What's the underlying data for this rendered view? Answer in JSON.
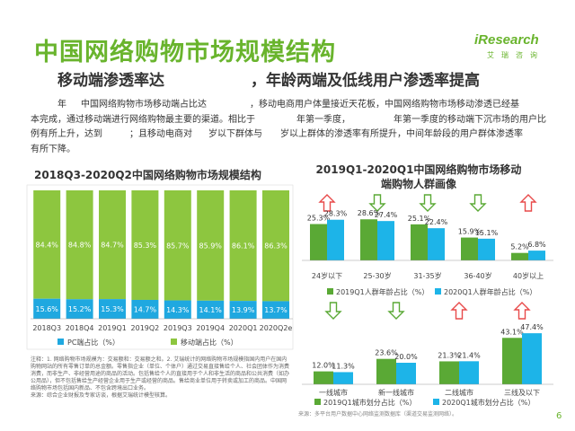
{
  "header": {
    "title": "中国网络购物市场规模结构",
    "subtitle_part1": "移动端渗透率达",
    "subtitle_part2": "，年龄两端及低线用户渗透率提高",
    "logo_word": "iResearch",
    "logo_cn": "艾瑞咨询"
  },
  "summary": {
    "lines": [
      [
        {
          "t": "年",
          "x": 30
        },
        {
          "t": "中国网络购物市场移动端占比达",
          "x": 56
        },
        {
          "t": "，移动电商用户体量接近天花板，中国网络购物市场移动渗透已经基",
          "x": 244
        }
      ],
      [
        {
          "t": "本完成，通过移动端进行网络购物最主要的渠道。相比于",
          "x": 0
        },
        {
          "t": "年第一季度，",
          "x": 296
        },
        {
          "t": "年第一季度的移动端下沉市场的用户比",
          "x": 404
        }
      ],
      [
        {
          "t": "例有所上升，达到",
          "x": 0
        },
        {
          "t": "；且移动电商对",
          "x": 110
        },
        {
          "t": "岁以下群体与",
          "x": 198
        },
        {
          "t": "岁以上群体的渗透率有所提升，中间年龄段的用户群体渗透率",
          "x": 278
        }
      ],
      [
        {
          "t": "有所下降。",
          "x": 0
        }
      ]
    ]
  },
  "note": {
    "text": "注释：1. 网络购物市场规模为：交易额和：交易额之和。2. 艾瑞统计的网络购物市场规模指国内用户在国内购物网站的所有零售订单的总金额。零售指企业（单位、个体户）通过交易直接售给个人、社会团体作为消费消费，而非生产、非经营用途的商品的活动。包括售给个人的直接用于个人和非生活的商品和公共消费（如办公用品），但不包括售给生产经营企业用于生产或经营的商品。售给商业单位用于转卖或加工的商品。中国网络购物市场包括国内新品、不包含跨境出口业务。\n来源：综合企业财报及专家访谈，根据艾瑞统计模型核算。"
  },
  "source_right": "来源：多平台用户数据中心网络监测数据库（渠道交易监测网络）。",
  "page_number": "6",
  "colors": {
    "brand_green": "#69b42d",
    "mobile_green": "#8dc63f",
    "pc_blue": "#1fa8e0",
    "series_2019": "#5aa935",
    "series_2020": "#1db4e8",
    "arrow_up_stroke": "#e84a4a",
    "arrow_down_stroke": "#5aa935"
  },
  "chart_data": [
    {
      "type": "bar",
      "stacked": true,
      "percent": true,
      "title": "2018Q3-2020Q2中国网络购物市场规模结构",
      "categories": [
        "2018Q3",
        "2018Q4",
        "2019Q1",
        "2019Q2",
        "2019Q3",
        "2019Q4",
        "2020Q1",
        "2020Q2e"
      ],
      "series": [
        {
          "name": "PC端占比（%）",
          "values": [
            15.6,
            15.2,
            15.3,
            14.7,
            14.3,
            14.1,
            13.9,
            13.7
          ]
        },
        {
          "name": "移动端占比（%）",
          "values": [
            84.4,
            84.8,
            84.7,
            85.3,
            85.7,
            85.9,
            86.1,
            86.3
          ]
        }
      ],
      "ylim": [
        0,
        100
      ],
      "legend": "bottom"
    },
    {
      "type": "bar",
      "title": "2019Q1-2020Q1中国网络购物市场移动端购物人群画像",
      "categories": [
        "24岁以下",
        "25-30岁",
        "31-35岁",
        "36-40岁",
        "40岁以上"
      ],
      "series": [
        {
          "name": "2019Q1人群年龄占比（%）",
          "values": [
            25.3,
            28.6,
            25.1,
            15.9,
            5.2
          ]
        },
        {
          "name": "2020Q1人群年龄占比（%）",
          "values": [
            28.3,
            27.4,
            22.4,
            15.1,
            6.8
          ]
        }
      ],
      "trend_arrows": [
        "up",
        "down",
        "down",
        "down",
        "up"
      ],
      "legend": "bottom"
    },
    {
      "type": "bar",
      "categories": [
        "一线城市",
        "新一线城市",
        "二线城市",
        "三线及以下"
      ],
      "series": [
        {
          "name": "2019Q1城市划分占比（%）",
          "values": [
            12.0,
            23.6,
            21.3,
            43.1
          ]
        },
        {
          "name": "2020Q1城市划分占比（%）",
          "values": [
            11.3,
            20.0,
            21.4,
            47.4
          ]
        }
      ],
      "trend_arrows": [
        "down",
        "down",
        "up",
        "up"
      ],
      "legend": "bottom"
    }
  ]
}
